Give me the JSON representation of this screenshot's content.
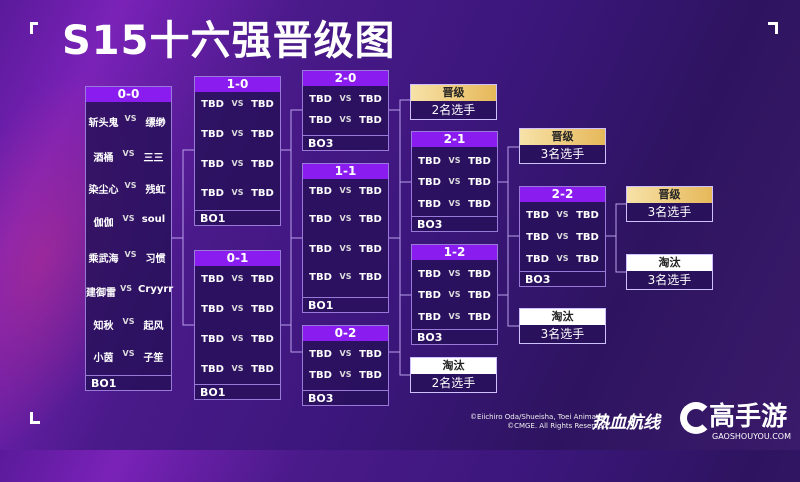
{
  "title": "S15十六强晋级图",
  "colors": {
    "header": "#8a1cf0",
    "advance": "#e6b85a",
    "eliminate": "#ffffff",
    "background": "#3a167a"
  },
  "pools": [
    {
      "id": "0-0",
      "label": "0-0",
      "format": "BO1",
      "matches": [
        [
          "斩头鬼",
          "缥缈"
        ],
        [
          "酒桶",
          "三三"
        ],
        [
          "染尘心",
          "残虹"
        ],
        [
          "伽伽",
          "soul"
        ],
        [
          "乘武海",
          "习惯"
        ],
        [
          "建御雷",
          "Cryyrr"
        ],
        [
          "知秋",
          "起风"
        ],
        [
          "小茵",
          "子笙"
        ]
      ]
    },
    {
      "id": "1-0",
      "label": "1-0",
      "format": "BO1",
      "matches": [
        [
          "TBD",
          "TBD"
        ],
        [
          "TBD",
          "TBD"
        ],
        [
          "TBD",
          "TBD"
        ],
        [
          "TBD",
          "TBD"
        ]
      ]
    },
    {
      "id": "0-1",
      "label": "0-1",
      "format": "BO1",
      "matches": [
        [
          "TBD",
          "TBD"
        ],
        [
          "TBD",
          "TBD"
        ],
        [
          "TBD",
          "TBD"
        ],
        [
          "TBD",
          "TBD"
        ]
      ]
    },
    {
      "id": "2-0",
      "label": "2-0",
      "format": "BO3",
      "matches": [
        [
          "TBD",
          "TBD"
        ],
        [
          "TBD",
          "TBD"
        ]
      ]
    },
    {
      "id": "1-1",
      "label": "1-1",
      "format": "BO1",
      "matches": [
        [
          "TBD",
          "TBD"
        ],
        [
          "TBD",
          "TBD"
        ],
        [
          "TBD",
          "TBD"
        ],
        [
          "TBD",
          "TBD"
        ]
      ]
    },
    {
      "id": "0-2",
      "label": "0-2",
      "format": "BO3",
      "matches": [
        [
          "TBD",
          "TBD"
        ],
        [
          "TBD",
          "TBD"
        ]
      ]
    },
    {
      "id": "2-1",
      "label": "2-1",
      "format": "BO3",
      "matches": [
        [
          "TBD",
          "TBD"
        ],
        [
          "TBD",
          "TBD"
        ],
        [
          "TBD",
          "TBD"
        ]
      ]
    },
    {
      "id": "1-2",
      "label": "1-2",
      "format": "BO3",
      "matches": [
        [
          "TBD",
          "TBD"
        ],
        [
          "TBD",
          "TBD"
        ],
        [
          "TBD",
          "TBD"
        ]
      ]
    },
    {
      "id": "2-2",
      "label": "2-2",
      "format": "BO3",
      "matches": [
        [
          "TBD",
          "TBD"
        ],
        [
          "TBD",
          "TBD"
        ],
        [
          "TBD",
          "TBD"
        ]
      ]
    }
  ],
  "vs": "VS",
  "results": [
    {
      "id": "adv-1",
      "status": "晋级",
      "type": "advance",
      "count": "2名选手"
    },
    {
      "id": "adv-2",
      "status": "晋级",
      "type": "advance",
      "count": "3名选手"
    },
    {
      "id": "adv-3",
      "status": "晋级",
      "type": "advance",
      "count": "3名选手"
    },
    {
      "id": "elim-1",
      "status": "淘汰",
      "type": "eliminate",
      "count": "2名选手"
    },
    {
      "id": "elim-2",
      "status": "淘汰",
      "type": "eliminate",
      "count": "3名选手"
    },
    {
      "id": "elim-3",
      "status": "淘汰",
      "type": "eliminate",
      "count": "3名选手"
    }
  ],
  "footer": {
    "copyright_1": "©Eiichiro Oda/Shueisha, Toei Animation",
    "copyright_2": "©CMGE. All Rights Reserved.",
    "game_logo": "热血航线",
    "site_logo": "G高手游",
    "site_url": "GAOSHOUYOU.COM"
  }
}
